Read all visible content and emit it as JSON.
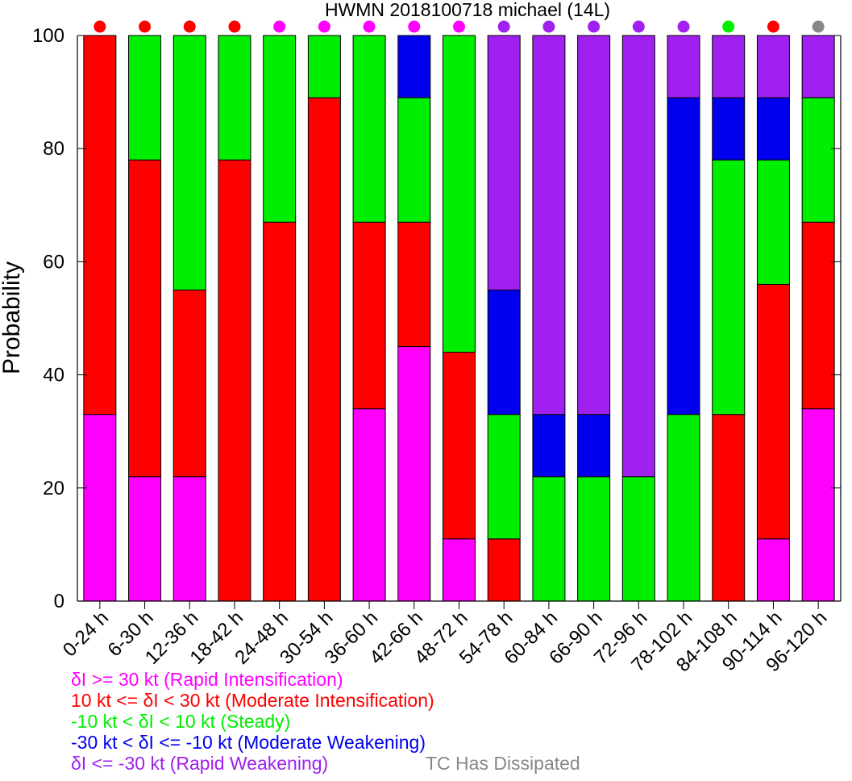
{
  "chart_data": {
    "type": "bar",
    "stacked": true,
    "title": "HWMN 2018100718 michael (14L)",
    "xlabel": "",
    "ylabel": "Probability",
    "ylim": [
      0,
      100
    ],
    "yticks": [
      0,
      20,
      40,
      60,
      80,
      100
    ],
    "grid": false,
    "categories": [
      "0-24 h",
      "6-30 h",
      "12-36 h",
      "18-42 h",
      "24-48 h",
      "30-54 h",
      "36-60 h",
      "42-66 h",
      "48-72 h",
      "54-78 h",
      "60-84 h",
      "66-90 h",
      "72-96 h",
      "78-102 h",
      "84-108 h",
      "90-114 h",
      "96-120 h"
    ],
    "series": [
      {
        "name": "δI >= 30 kt (Rapid Intensification)",
        "color": "#ff00ff",
        "values": [
          33,
          22,
          22,
          0,
          0,
          0,
          34,
          45,
          11,
          0,
          0,
          0,
          0,
          0,
          0,
          11,
          34
        ]
      },
      {
        "name": "10 kt <= δI < 30 kt (Moderate Intensification)",
        "color": "#ff0000",
        "values": [
          67,
          56,
          33,
          78,
          67,
          89,
          33,
          22,
          33,
          11,
          0,
          0,
          0,
          0,
          33,
          45,
          33
        ]
      },
      {
        "name": "-10 kt < δI < 10 kt (Steady)",
        "color": "#00ee00",
        "values": [
          0,
          22,
          45,
          22,
          33,
          11,
          33,
          22,
          56,
          22,
          22,
          22,
          22,
          33,
          45,
          22,
          22
        ]
      },
      {
        "name": "-30 kt < δI <= -10 kt (Moderate Weakening)",
        "color": "#0000ee",
        "values": [
          0,
          0,
          0,
          0,
          0,
          0,
          0,
          11,
          0,
          22,
          11,
          11,
          0,
          56,
          11,
          11,
          0
        ]
      },
      {
        "name": "δI <= -30 kt (Rapid Weakening)",
        "color": "#a020f0",
        "values": [
          0,
          0,
          0,
          0,
          0,
          0,
          0,
          0,
          0,
          45,
          67,
          67,
          78,
          11,
          11,
          11,
          11
        ]
      }
    ],
    "dominant_dots": [
      "#ff0000",
      "#ff0000",
      "#ff0000",
      "#ff0000",
      "#ff00ff",
      "#ff00ff",
      "#ff00ff",
      "#ff00ff",
      "#ff00ff",
      "#a020f0",
      "#a020f0",
      "#a020f0",
      "#a020f0",
      "#a020f0",
      "#00ee00",
      "#ff0000",
      "#888888"
    ],
    "legend": {
      "placement": "bottom-left",
      "extra_entry": {
        "label": "TC Has Dissipated",
        "color": "#888888"
      }
    }
  }
}
